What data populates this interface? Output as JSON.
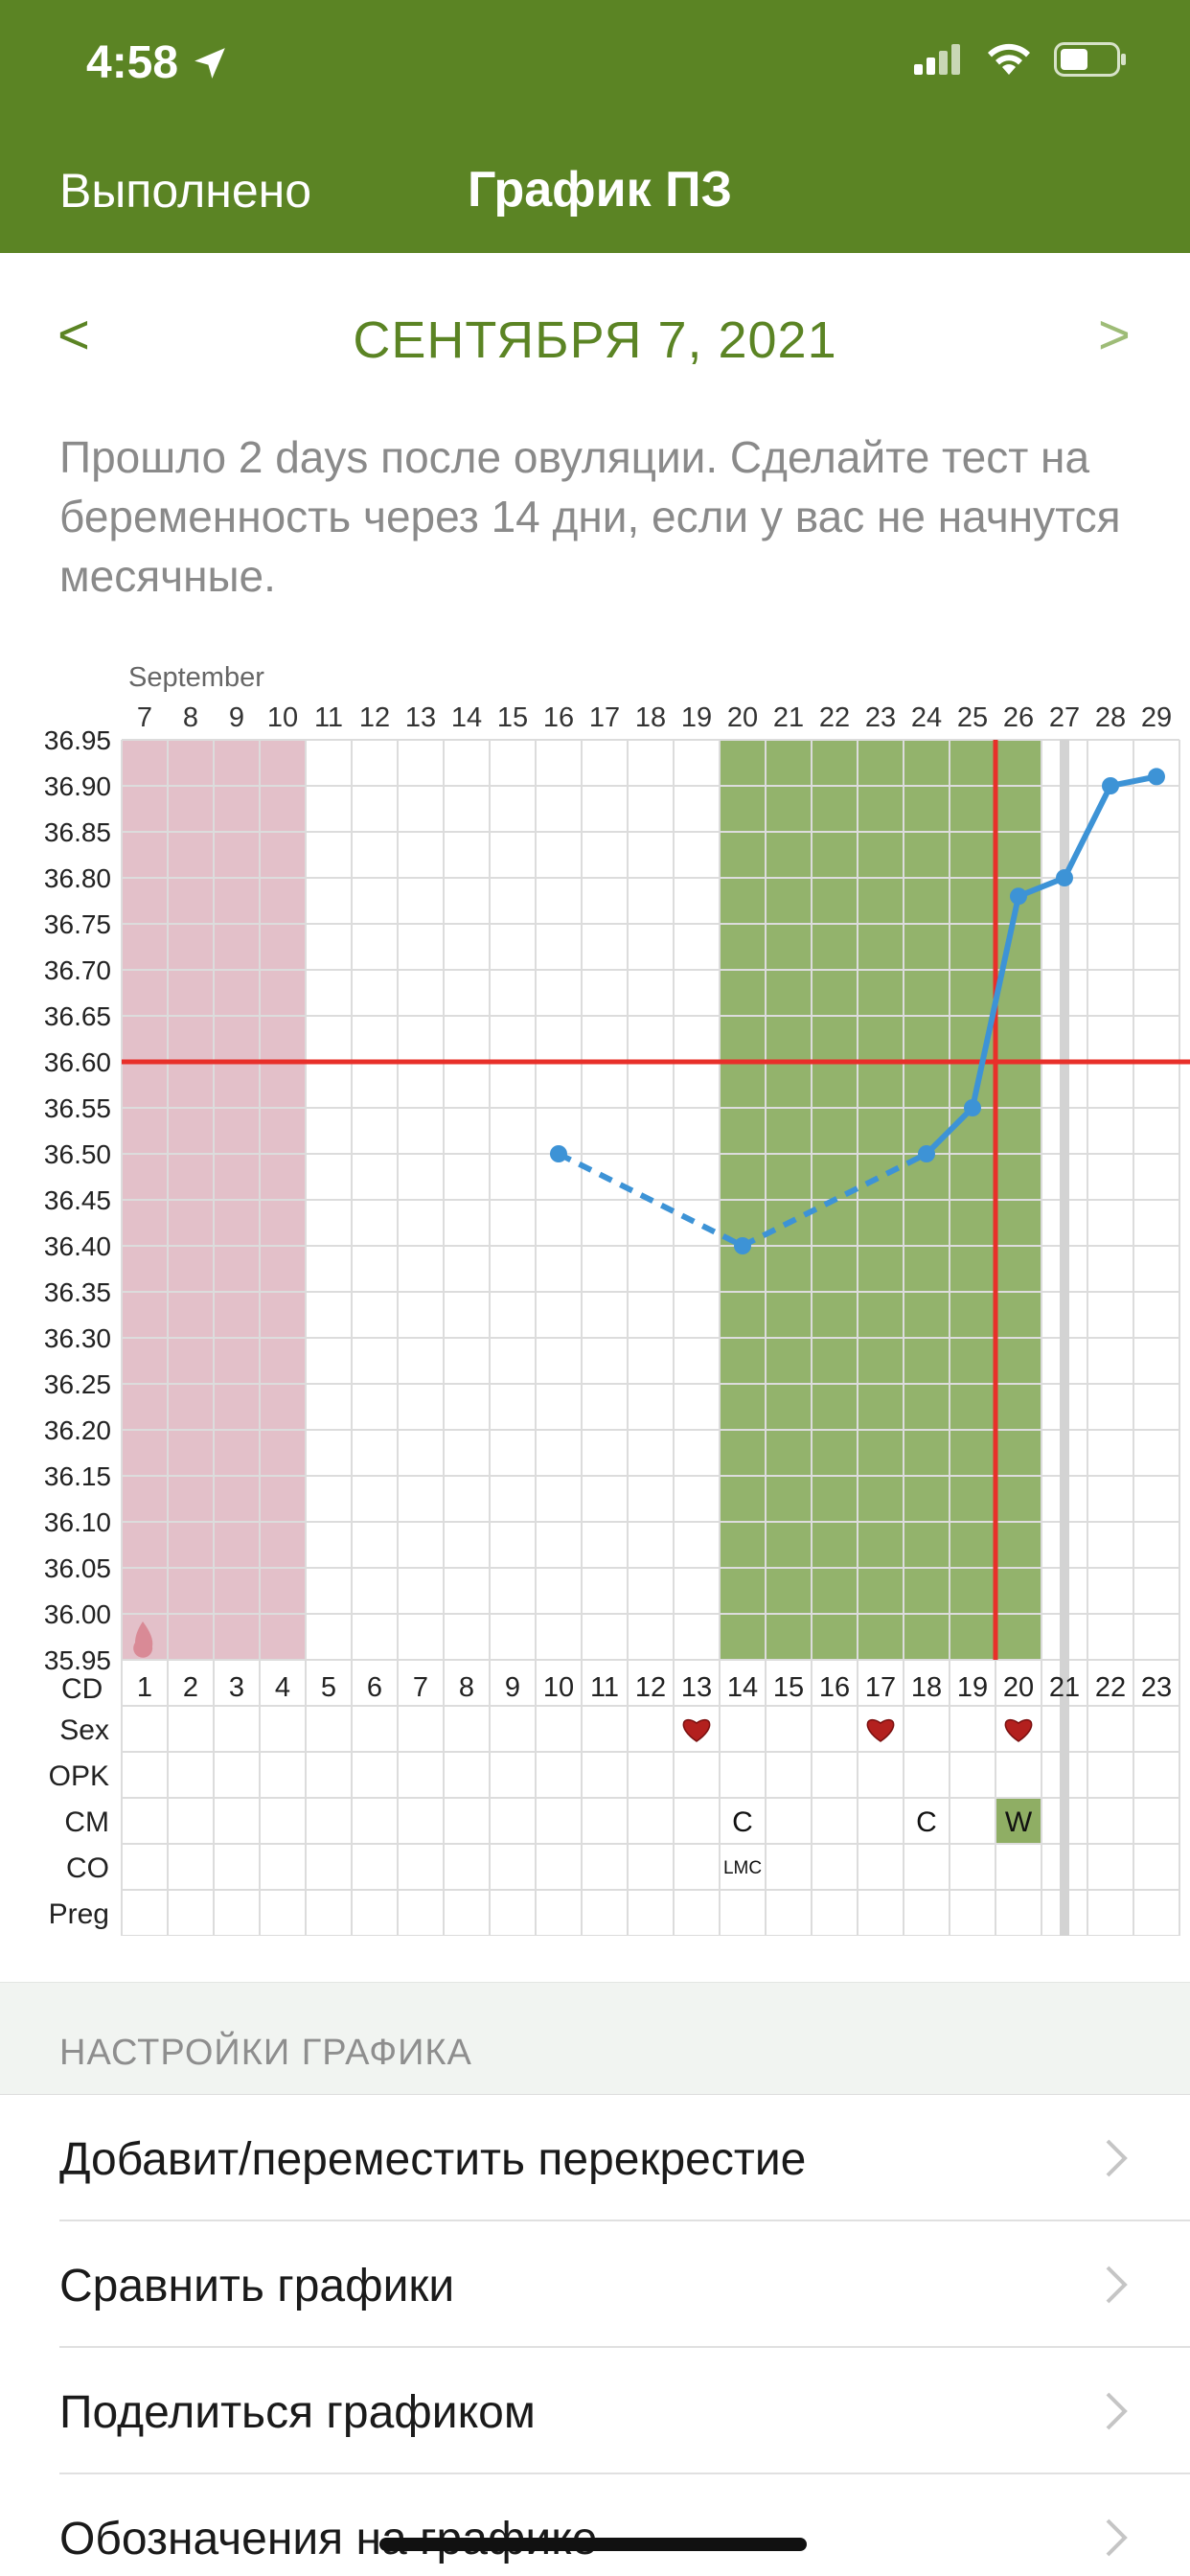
{
  "status": {
    "time": "4:58"
  },
  "nav": {
    "done_label": "Выполнено",
    "title": "График ПЗ"
  },
  "date": {
    "prev": "<",
    "text": "СЕНТЯБРЯ 7, 2021",
    "next": ">"
  },
  "info_text": "Прошло 2 days после овуляции. Сделайте тест на беременность через 14 дни, если у вас не начнутся месячные.",
  "chart_data": {
    "type": "line",
    "month_label": "September",
    "dates": [
      "7",
      "8",
      "9",
      "10",
      "11",
      "12",
      "13",
      "14",
      "15",
      "16",
      "17",
      "18",
      "19",
      "20",
      "21",
      "22",
      "23",
      "24",
      "25",
      "26",
      "27",
      "28",
      "29"
    ],
    "cycle_days": [
      "1",
      "2",
      "3",
      "4",
      "5",
      "6",
      "7",
      "8",
      "9",
      "10",
      "11",
      "12",
      "13",
      "14",
      "15",
      "16",
      "17",
      "18",
      "19",
      "20",
      "21",
      "22",
      "23"
    ],
    "y_ticks": [
      "36.95",
      "36.90",
      "36.85",
      "36.80",
      "36.75",
      "36.70",
      "36.65",
      "36.60",
      "36.55",
      "36.50",
      "36.45",
      "36.40",
      "36.35",
      "36.30",
      "36.25",
      "36.20",
      "36.15",
      "36.10",
      "36.05",
      "36.00",
      "35.95"
    ],
    "ylim": [
      35.95,
      36.95
    ],
    "cd_label": "CD",
    "period_days": [
      1,
      4
    ],
    "fertile_days": [
      14,
      20
    ],
    "cover_line": 36.6,
    "ovulation_day": 19,
    "today_day": 21,
    "series": [
      {
        "style": "dashed",
        "points": [
          [
            10,
            36.5
          ],
          [
            14,
            36.4
          ]
        ]
      },
      {
        "style": "dashed",
        "points": [
          [
            14,
            36.4
          ],
          [
            18,
            36.5
          ]
        ]
      },
      {
        "style": "solid",
        "points": [
          [
            18,
            36.5
          ],
          [
            19,
            36.55
          ],
          [
            20,
            36.78
          ],
          [
            21,
            36.8
          ],
          [
            22,
            36.9
          ],
          [
            23,
            36.91
          ]
        ]
      }
    ],
    "rows": [
      {
        "label": "Sex",
        "cells": [
          {
            "day": 13,
            "type": "heart"
          },
          {
            "day": 17,
            "type": "heart"
          },
          {
            "day": 20,
            "type": "heart"
          }
        ]
      },
      {
        "label": "OPK",
        "cells": []
      },
      {
        "label": "CM",
        "cells": [
          {
            "day": 14,
            "type": "text",
            "text": "C"
          },
          {
            "day": 18,
            "type": "text",
            "text": "C"
          },
          {
            "day": 20,
            "type": "box",
            "text": "W"
          }
        ]
      },
      {
        "label": "CO",
        "cells": [
          {
            "day": 14,
            "type": "small",
            "text": "LMC"
          }
        ]
      },
      {
        "label": "Preg",
        "cells": []
      }
    ],
    "colors": {
      "period": "#e3c0c9",
      "fertile": "#93b36c",
      "line": "#3d93d6",
      "cover": "#e8302a",
      "today": "#d3d3d3",
      "cm_box": "#8fae64"
    }
  },
  "settings": {
    "header": "НАСТРОЙКИ ГРАФИКА",
    "items": [
      {
        "label": "Добавит/переместить перекрестие"
      },
      {
        "label": "Сравнить графики"
      },
      {
        "label": "Поделиться графиком"
      },
      {
        "label": "Обозначения на графике"
      }
    ]
  },
  "colors": {
    "header_bg": "#5b8424",
    "accent": "#5b8424"
  }
}
